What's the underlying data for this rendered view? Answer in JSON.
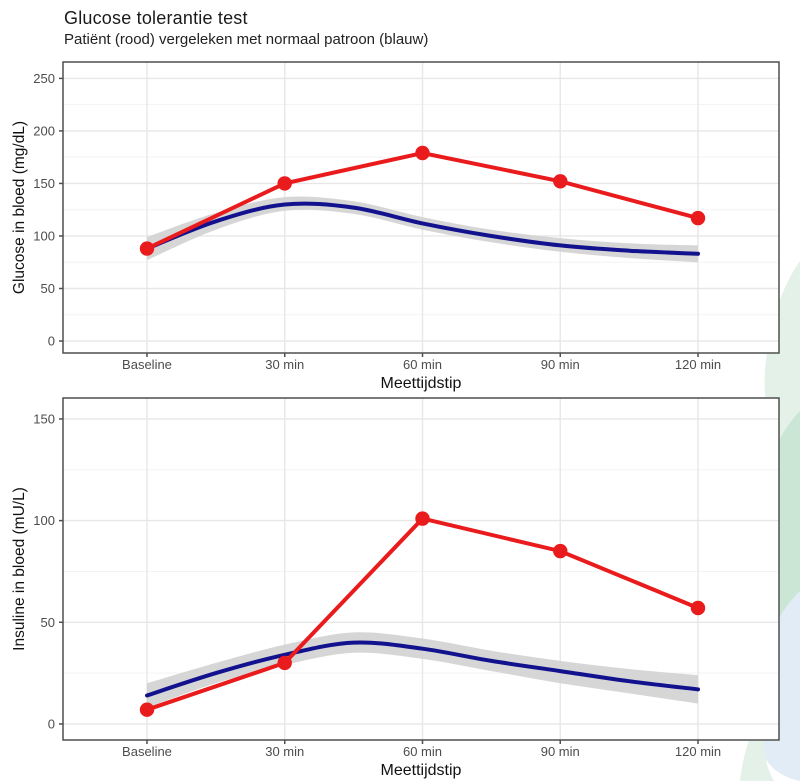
{
  "header": {
    "title": "Glucose tolerantie test",
    "subtitle": "Patiënt (rood) vergeleken met normaal patroon (blauw)"
  },
  "colors": {
    "patient_red": "#ea1b1c",
    "normal_blue": "#12128e",
    "ribbon_gray": "#d2d2d2",
    "grid_major": "#e7e7e7",
    "grid_minor": "#f3f3f3",
    "panel_border": "#4f4f4f",
    "tick_text": "#4d4d4d",
    "axis_title_text": "#111111",
    "watermark_pale_green": "#e4f1e8",
    "watermark_teal": "#cbe6d4",
    "watermark_pale_blue": "#e2ecf7"
  },
  "chart_data": [
    {
      "type": "line",
      "id": "glucose",
      "ylabel": "Glucose in bloed (mg/dL)",
      "xlabel": "Meettijdstip",
      "categories": [
        "Baseline",
        "30 min",
        "60 min",
        "90 min",
        "120 min"
      ],
      "yticks": [
        0,
        50,
        100,
        150,
        200,
        250
      ],
      "minor_yticks": [
        25,
        75,
        125,
        175,
        225
      ],
      "ylim": [
        -11.4,
        265.6
      ],
      "grid": "on",
      "legend": "none",
      "series": [
        {
          "name": "Normaal patroon (blauw)",
          "role": "normal",
          "style": "smooth_with_ribbon",
          "x": [
            0,
            0.5,
            1,
            1.5,
            2,
            2.5,
            3,
            3.5,
            4
          ],
          "values": [
            88,
            114,
            130,
            127,
            112,
            100,
            91,
            86,
            83
          ],
          "lower": [
            77,
            106,
            124,
            121,
            106,
            94,
            85,
            79,
            75
          ],
          "upper": [
            99,
            122,
            137,
            133,
            118,
            106,
            98,
            93,
            91
          ]
        },
        {
          "name": "Patiënt (rood)",
          "role": "patient",
          "style": "line_with_points",
          "x": [
            0,
            1,
            2,
            3,
            4
          ],
          "values": [
            88,
            150,
            179,
            152,
            117
          ]
        }
      ]
    },
    {
      "type": "line",
      "id": "insuline",
      "ylabel": "Insuline in bloed (mU/L)",
      "xlabel": "Meettijdstip",
      "categories": [
        "Baseline",
        "30 min",
        "60 min",
        "90 min",
        "120 min"
      ],
      "yticks": [
        0,
        50,
        100,
        150
      ],
      "minor_yticks": [
        25,
        75,
        125
      ],
      "ylim": [
        -7.9,
        160.3
      ],
      "grid": "on",
      "legend": "none",
      "series": [
        {
          "name": "Normaal patroon (blauw)",
          "role": "normal",
          "style": "smooth_with_ribbon",
          "x": [
            0,
            0.5,
            1,
            1.5,
            2,
            2.5,
            3,
            3.5,
            4
          ],
          "values": [
            14,
            25,
            34,
            40,
            37,
            31,
            26,
            21,
            17
          ],
          "lower": [
            8,
            20,
            29,
            35,
            32,
            26,
            20,
            15,
            10
          ],
          "upper": [
            20,
            30,
            39,
            45,
            42,
            36,
            31,
            27,
            24
          ]
        },
        {
          "name": "Patiënt (rood)",
          "role": "patient",
          "style": "line_with_points",
          "x": [
            0,
            1,
            2,
            3,
            4
          ],
          "values": [
            7,
            30,
            101,
            85,
            57
          ]
        }
      ]
    }
  ]
}
